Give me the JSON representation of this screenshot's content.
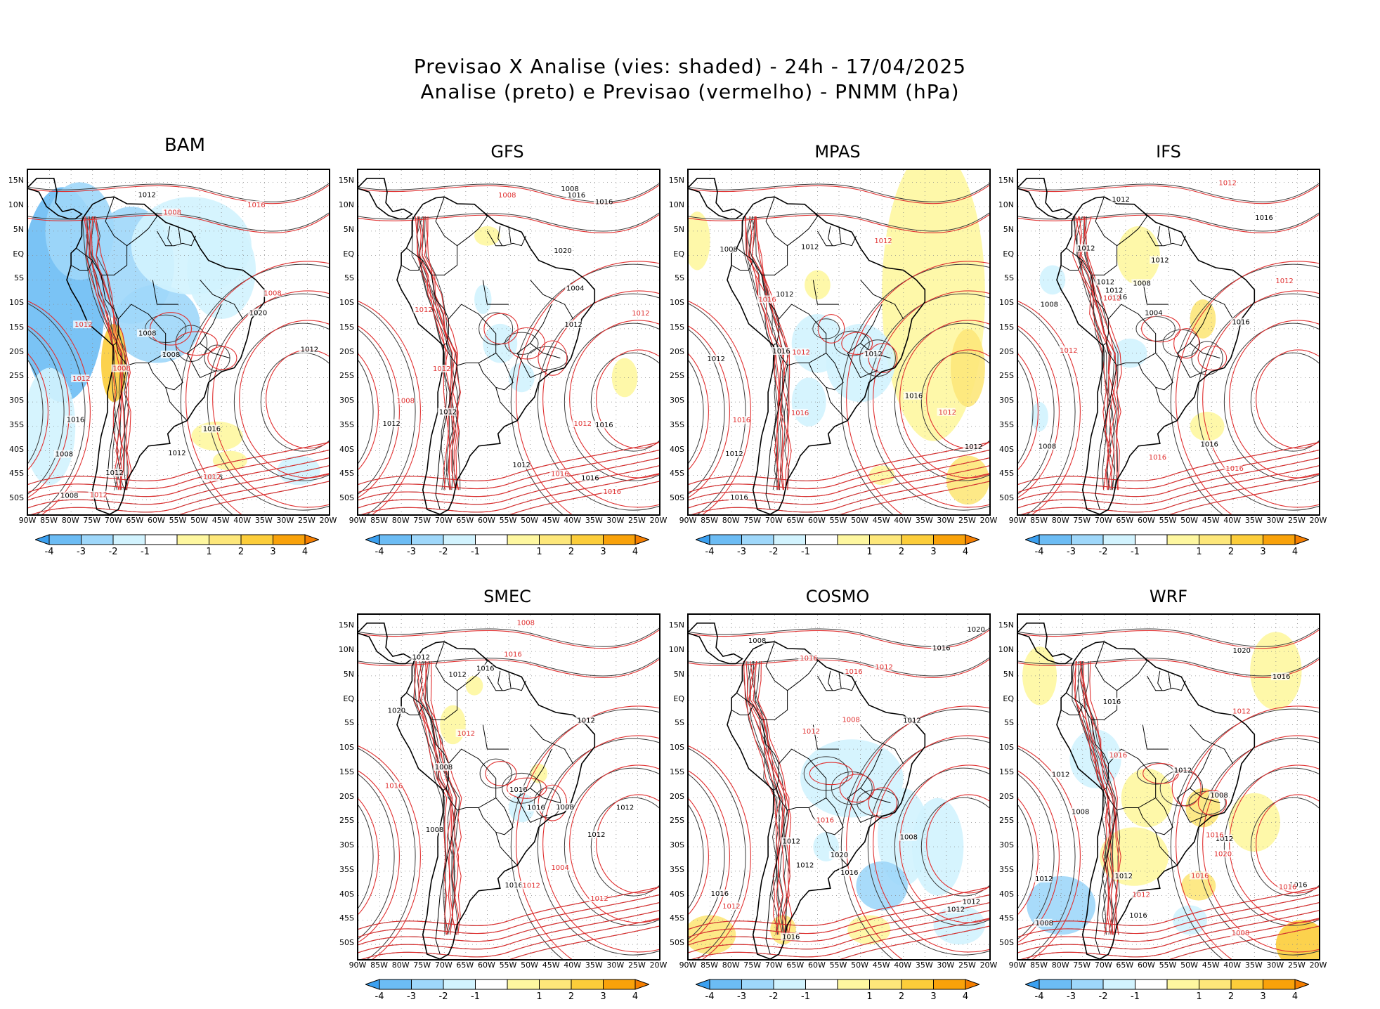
{
  "header": {
    "title_line1": "Previsao X Analise (vies: shaded) - 24h - 17/04/2025",
    "title_line2": "Analise (preto) e Previsao (vermelho) - PNMM (hPa)"
  },
  "lat_ticks": [
    "15N",
    "10N",
    "5N",
    "EQ",
    "5S",
    "10S",
    "15S",
    "20S",
    "25S",
    "30S",
    "35S",
    "40S",
    "45S",
    "50S"
  ],
  "lon_ticks": [
    "90W",
    "85W",
    "80W",
    "75W",
    "70W",
    "65W",
    "60W",
    "55W",
    "50W",
    "45W",
    "40W",
    "35W",
    "30W",
    "25W",
    "20W"
  ],
  "colorbar": {
    "labels": [
      "-4",
      "-3",
      "-2",
      "-1",
      "1",
      "2",
      "3",
      "4"
    ],
    "colors": [
      "#3ba0f0",
      "#6cbcf4",
      "#9ed7fa",
      "#d2f3fe",
      "#ffffff",
      "#fef7a0",
      "#fde77a",
      "#fccd3a",
      "#f9a20a",
      "#f57f00"
    ]
  },
  "colors": {
    "analysis": "#000000",
    "forecast": "#e03030",
    "neg_bias": "#9ed7fa",
    "pos_bias": "#fef7a0"
  },
  "panels": [
    {
      "id": "bam",
      "name": "BAM",
      "labels_black": [
        "1012",
        "1016",
        "1008",
        "1012",
        "1008",
        "1012",
        "1008",
        "1016",
        "1020",
        "1012",
        "1008",
        "1016"
      ],
      "labels_red": [
        "1008",
        "1012",
        "1012",
        "1008",
        "1012",
        "1016",
        "1012",
        "1008"
      ]
    },
    {
      "id": "gfs",
      "name": "GFS",
      "labels_black": [
        "1012",
        "1016",
        "1008",
        "1012",
        "1016",
        "1012",
        "1016",
        "1020",
        "1012",
        "1004",
        "1016"
      ],
      "labels_red": [
        "1016",
        "1008",
        "1012",
        "1012",
        "1016",
        "1012",
        "1008",
        "1012"
      ]
    },
    {
      "id": "mpas",
      "name": "MPAS",
      "labels_black": [
        "1016",
        "1008",
        "1012",
        "1012",
        "1012",
        "1016",
        "1012",
        "1016",
        "1012",
        "1012"
      ],
      "labels_red": [
        "1016",
        "1012",
        "1016",
        "1012",
        "1016",
        "1012"
      ]
    },
    {
      "id": "ifs",
      "name": "IFS",
      "labels_black": [
        "1012",
        "1016",
        "1008",
        "1012",
        "1008",
        "1012",
        "1012",
        "1016",
        "1008",
        "1012",
        "1016",
        "1004",
        "1016"
      ],
      "labels_red": [
        "1012",
        "1016",
        "1012",
        "1012",
        "1016",
        "1012"
      ]
    },
    {
      "id": "smec",
      "name": "SMEC",
      "labels_black": [
        "1012",
        "1016",
        "1008",
        "1012",
        "1012",
        "1008",
        "1016",
        "1012",
        "1012",
        "1016",
        "1020",
        "1008",
        "1016"
      ],
      "labels_red": [
        "1016",
        "1008",
        "1012",
        "1012",
        "1016",
        "1012",
        "1004"
      ]
    },
    {
      "id": "cosmo",
      "name": "COSMO",
      "labels_black": [
        "1016",
        "1008",
        "1012",
        "1008",
        "1012",
        "1012",
        "1016",
        "1020",
        "1016",
        "1012",
        "1020",
        "1012",
        "1016"
      ],
      "labels_red": [
        "1012",
        "1012",
        "1016",
        "1016",
        "1016",
        "1012",
        "1008"
      ]
    },
    {
      "id": "wrf",
      "name": "WRF",
      "labels_black": [
        "1012",
        "1016",
        "1008",
        "1012",
        "1012",
        "1016",
        "1008",
        "1012",
        "1016",
        "1012",
        "1016",
        "1020",
        "1008"
      ],
      "labels_red": [
        "1016",
        "1012",
        "1008",
        "1016",
        "1020",
        "1016",
        "1012",
        "1016"
      ]
    }
  ]
}
